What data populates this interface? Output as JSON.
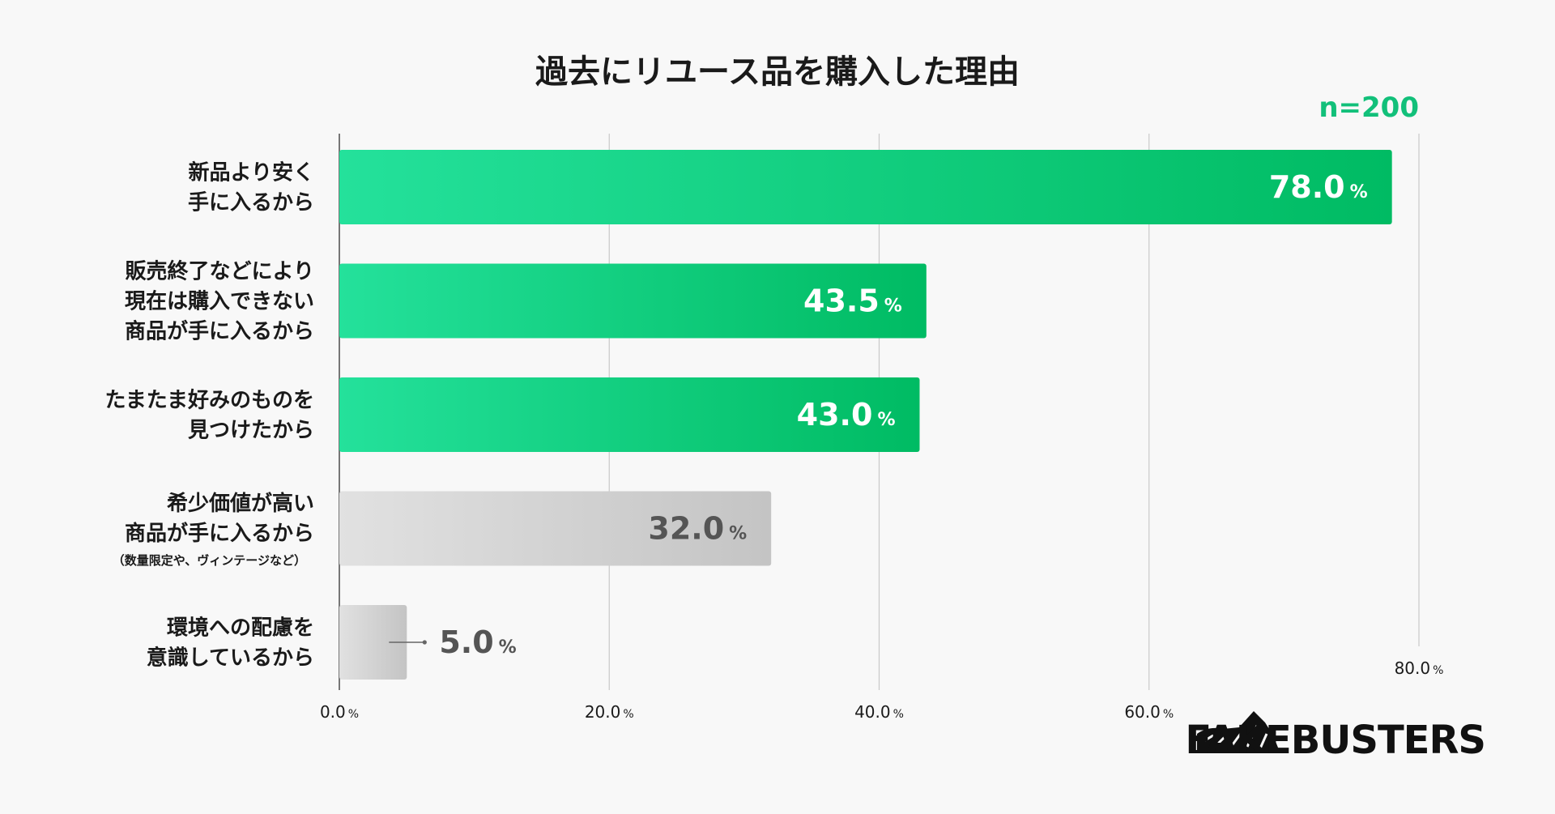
{
  "chart_data": {
    "type": "bar",
    "orientation": "horizontal",
    "title": "過去にリユース品を購入した理由",
    "sample_size": "n=200",
    "unit": "%",
    "categories": [
      {
        "lines": [
          "新品より安く",
          "手に入るから"
        ],
        "note": ""
      },
      {
        "lines": [
          "販売終了などにより",
          "現在は購入できない",
          "商品が手に入るから"
        ],
        "note": ""
      },
      {
        "lines": [
          "たまたま好みのものを",
          "見つけたから"
        ],
        "note": ""
      },
      {
        "lines": [
          "希少価値が高い",
          "商品が手に入るから"
        ],
        "note": "（数量限定や、ヴィンテージなど）"
      },
      {
        "lines": [
          "環境への配慮を",
          "意識しているから"
        ],
        "note": ""
      }
    ],
    "values": [
      78.0,
      43.5,
      43.0,
      32.0,
      5.0
    ],
    "value_labels": [
      "78.0",
      "43.5",
      "43.0",
      "32.0",
      "5.0"
    ],
    "highlight": [
      true,
      true,
      true,
      false,
      false
    ],
    "xlim": [
      0,
      80
    ],
    "xticks": [
      0,
      20,
      40,
      60,
      80
    ],
    "xtick_labels": [
      "0.0",
      "20.0",
      "40.0",
      "60.0",
      "80.0"
    ],
    "grid": true,
    "colors": {
      "highlight_start": "#24e19b",
      "highlight_end": "#00bb63",
      "muted_start": "#e1e1e1",
      "muted_end": "#c4c4c4",
      "highlight_text": "#ffffff",
      "muted_text": "#555555",
      "accent": "#12c07a"
    }
  },
  "brand": {
    "name": "FAKEBUSTERS",
    "icon": "sneaker-logo-icon"
  }
}
